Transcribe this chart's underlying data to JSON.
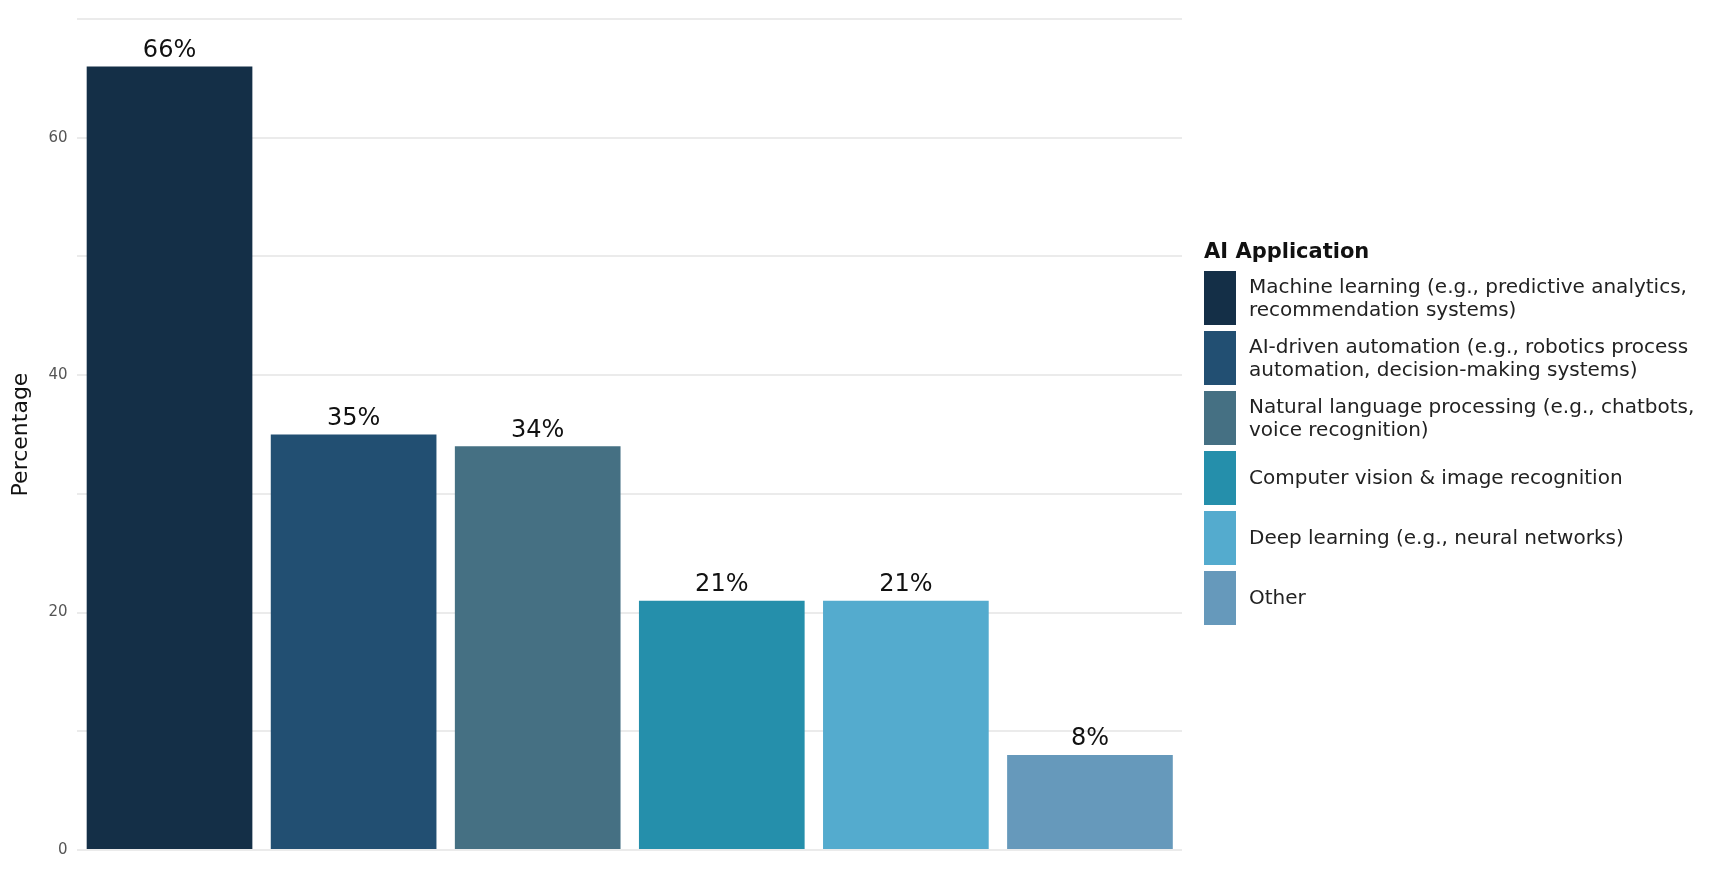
{
  "chart_data": {
    "type": "bar",
    "categories": [
      null,
      null,
      null,
      null,
      null,
      null
    ],
    "series": [
      {
        "name": "Machine learning (e.g., predictive analytics, recommendation systems)",
        "color": "#142f47",
        "values": [
          66,
          null,
          null,
          null,
          null,
          null
        ],
        "value_labels": [
          "66%",
          null,
          null,
          null,
          null,
          null
        ]
      },
      {
        "name": "AI-driven automation (e.g., robotics process automation, decision-making systems)",
        "color": "#224f72",
        "values": [
          null,
          35,
          null,
          null,
          null,
          null
        ],
        "value_labels": [
          null,
          "35%",
          null,
          null,
          null,
          null
        ]
      },
      {
        "name": "Natural language processing (e.g., chatbots, voice recognition)",
        "color": "#457083",
        "values": [
          null,
          null,
          34,
          null,
          null,
          null
        ],
        "value_labels": [
          null,
          null,
          "34%",
          null,
          null,
          null
        ]
      },
      {
        "name": "Computer vision & image recognition",
        "color": "#258fab",
        "values": [
          null,
          null,
          null,
          21,
          null,
          null
        ],
        "value_labels": [
          null,
          null,
          null,
          "21%",
          null,
          null
        ]
      },
      {
        "name": "Deep learning (e.g., neural networks)",
        "color": "#54abce",
        "values": [
          null,
          null,
          null,
          null,
          21,
          null
        ],
        "value_labels": [
          null,
          null,
          null,
          null,
          "21%",
          null
        ]
      },
      {
        "name": "Other",
        "color": "#6699bb",
        "values": [
          null,
          null,
          null,
          null,
          null,
          8
        ],
        "value_labels": [
          null,
          null,
          null,
          null,
          null,
          "8%"
        ]
      }
    ],
    "ylabel": "Percentage",
    "legend_title": "AI Application",
    "legend": "right",
    "tick_labels": "y",
    "grid": "y",
    "ylim": [
      0,
      70
    ],
    "yticks": [
      0,
      {
        "value": 10,
        "label": null
      },
      20,
      {
        "value": 30,
        "label": null
      },
      40,
      {
        "value": 50,
        "label": null
      },
      60,
      {
        "value": 70,
        "label": null
      }
    ]
  }
}
